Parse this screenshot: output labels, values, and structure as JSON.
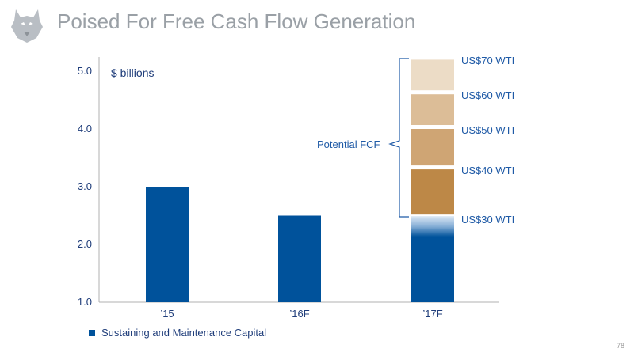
{
  "title": "Poised For Free Cash Flow Generation",
  "page_number": "78",
  "colors": {
    "bar": "#00529b",
    "title": "#9aa0a6",
    "accent_text": "#1f5aa6",
    "fcf_bands": [
      "#ecdcc6",
      "#dcbd97",
      "#cfa574",
      "#bd8847"
    ]
  },
  "icons": {
    "logo": "husky-dog-head-icon"
  },
  "chart_data": {
    "type": "bar",
    "units_label": "$ billions",
    "categories": [
      "’15",
      "’16F",
      "’17F"
    ],
    "series": [
      {
        "name": "Sustaining and Maintenance Capital",
        "values": [
          3.0,
          2.5,
          2.45
        ]
      }
    ],
    "ylim": [
      1.0,
      5.5
    ],
    "yticks": [
      "1.0",
      "2.0",
      "3.0",
      "4.0",
      "5.0"
    ],
    "potential_fcf": {
      "label": "Potential FCF",
      "levels": [
        {
          "label": "US$30 WTI",
          "value": 2.45
        },
        {
          "label": "US$40 WTI",
          "value": 3.3
        },
        {
          "label": "US$50 WTI",
          "value": 4.0
        },
        {
          "label": "US$60 WTI",
          "value": 4.6
        },
        {
          "label": "US$70 WTI",
          "value": 5.2
        }
      ]
    },
    "legend_position": "bottom-left",
    "grid": false
  }
}
